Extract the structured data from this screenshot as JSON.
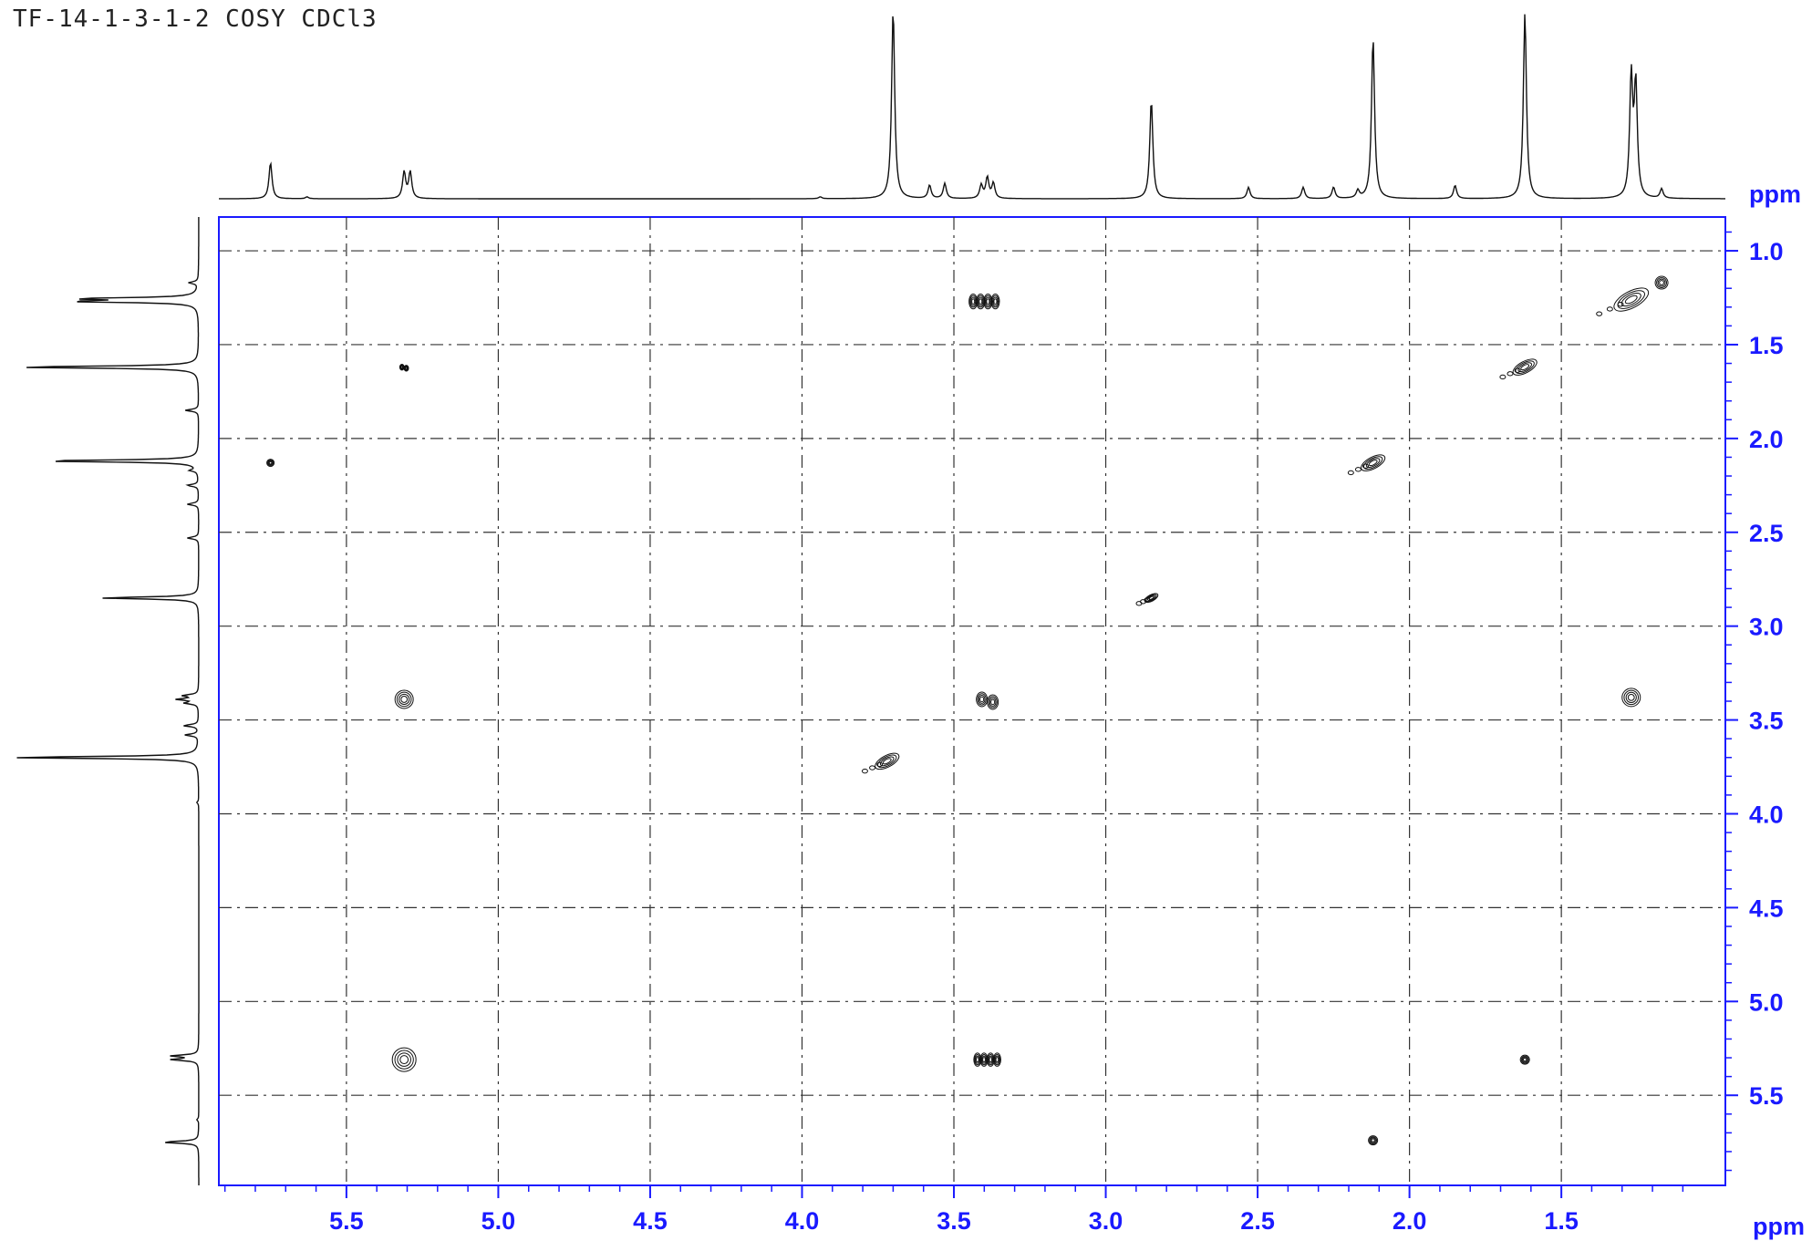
{
  "title": "TF-14-1-3-1-2 COSY CDCl3",
  "chart_data": {
    "type": "contour",
    "xlabel": "ppm",
    "ylabel": "ppm",
    "x_range": [
      5.92,
      0.96
    ],
    "y_range": [
      0.82,
      5.98
    ],
    "x_ticks": [
      "5.5",
      "5.0",
      "4.5",
      "4.0",
      "3.5",
      "3.0",
      "2.5",
      "2.0",
      "1.5"
    ],
    "y_ticks": [
      "1.0",
      "1.5",
      "2.0",
      "2.5",
      "3.0",
      "3.5",
      "4.0",
      "4.5",
      "5.0",
      "5.5"
    ],
    "grid": true,
    "axis_color": "#1a1aff",
    "projection_peaks": [
      {
        "ppm": 5.75,
        "height": 0.19
      },
      {
        "ppm": 5.63,
        "height": 0.01
      },
      {
        "ppm": 5.31,
        "height": 0.14
      },
      {
        "ppm": 5.29,
        "height": 0.14
      },
      {
        "ppm": 3.94,
        "height": 0.01
      },
      {
        "ppm": 3.7,
        "height": 1.0
      },
      {
        "ppm": 3.58,
        "height": 0.07
      },
      {
        "ppm": 3.53,
        "height": 0.08
      },
      {
        "ppm": 3.41,
        "height": 0.07
      },
      {
        "ppm": 3.39,
        "height": 0.11
      },
      {
        "ppm": 3.37,
        "height": 0.08
      },
      {
        "ppm": 2.85,
        "height": 0.52
      },
      {
        "ppm": 2.53,
        "height": 0.06
      },
      {
        "ppm": 2.35,
        "height": 0.06
      },
      {
        "ppm": 2.25,
        "height": 0.06
      },
      {
        "ppm": 2.17,
        "height": 0.04
      },
      {
        "ppm": 2.12,
        "height": 0.85
      },
      {
        "ppm": 1.85,
        "height": 0.07
      },
      {
        "ppm": 1.62,
        "height": 0.98
      },
      {
        "ppm": 1.27,
        "height": 0.63
      },
      {
        "ppm": 1.255,
        "height": 0.59
      },
      {
        "ppm": 1.17,
        "height": 0.05
      }
    ],
    "cross_peaks": [
      {
        "x": 3.4,
        "y": 1.27,
        "size": 0.9,
        "shape": "multiplet"
      },
      {
        "x": 1.27,
        "y": 1.26,
        "size": 1.3,
        "shape": "diag"
      },
      {
        "x": 1.17,
        "y": 1.17,
        "size": 0.7,
        "shape": "round"
      },
      {
        "x": 5.31,
        "y": 1.62,
        "size": 0.4,
        "shape": "pair"
      },
      {
        "x": 1.62,
        "y": 1.62,
        "size": 0.9,
        "shape": "diag"
      },
      {
        "x": 5.75,
        "y": 2.13,
        "size": 0.4,
        "shape": "round"
      },
      {
        "x": 2.12,
        "y": 2.13,
        "size": 0.9,
        "shape": "diag"
      },
      {
        "x": 2.85,
        "y": 2.85,
        "size": 0.5,
        "shape": "diag"
      },
      {
        "x": 5.31,
        "y": 3.39,
        "size": 1.0,
        "shape": "round"
      },
      {
        "x": 3.39,
        "y": 3.39,
        "size": 1.0,
        "shape": "pair"
      },
      {
        "x": 1.27,
        "y": 3.38,
        "size": 1.0,
        "shape": "round"
      },
      {
        "x": 3.72,
        "y": 3.72,
        "size": 0.9,
        "shape": "diag"
      },
      {
        "x": 5.31,
        "y": 5.31,
        "size": 1.3,
        "shape": "round"
      },
      {
        "x": 3.39,
        "y": 5.31,
        "size": 0.8,
        "shape": "multiplet"
      },
      {
        "x": 1.62,
        "y": 5.31,
        "size": 0.5,
        "shape": "round"
      },
      {
        "x": 2.12,
        "y": 5.74,
        "size": 0.5,
        "shape": "round"
      }
    ]
  }
}
